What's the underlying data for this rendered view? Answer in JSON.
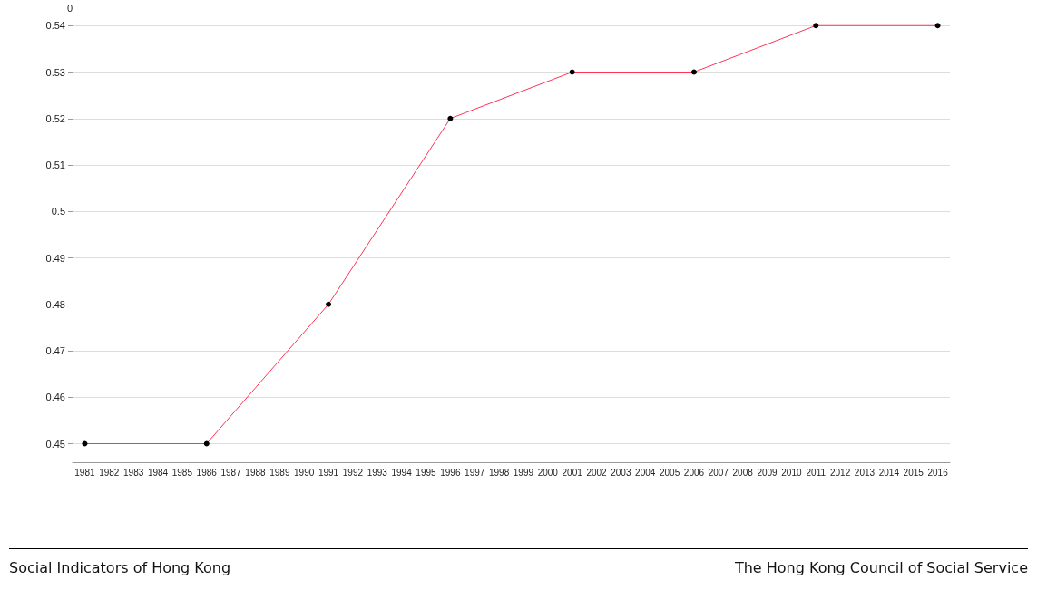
{
  "chart_data": {
    "type": "line",
    "ylabel": "0",
    "categories": [
      "1981",
      "1982",
      "1983",
      "1984",
      "1985",
      "1986",
      "1987",
      "1988",
      "1989",
      "1990",
      "1991",
      "1992",
      "1993",
      "1994",
      "1995",
      "1996",
      "1997",
      "1998",
      "1999",
      "2000",
      "2001",
      "2002",
      "2003",
      "2004",
      "2005",
      "2006",
      "2007",
      "2008",
      "2009",
      "2010",
      "2011",
      "2012",
      "2013",
      "2014",
      "2015",
      "2016"
    ],
    "series": [
      {
        "color": "#ff3355",
        "values": [
          0.45,
          null,
          null,
          null,
          null,
          0.45,
          null,
          null,
          null,
          null,
          0.48,
          null,
          null,
          null,
          null,
          0.52,
          null,
          null,
          null,
          null,
          0.53,
          null,
          null,
          null,
          null,
          0.53,
          null,
          null,
          null,
          null,
          0.54,
          null,
          null,
          null,
          null,
          0.54
        ]
      }
    ],
    "ylim": [
      0.446,
      0.542
    ],
    "yticks": [
      0.45,
      0.46,
      0.47,
      0.48,
      0.49,
      0.5,
      0.51,
      0.52,
      0.53,
      0.54
    ],
    "grid": "y",
    "marker": "circle",
    "line_style": "solid",
    "annotations": [
      "Social Indicators of Hong Kong",
      "The Hong Kong Council of Social Service"
    ]
  }
}
